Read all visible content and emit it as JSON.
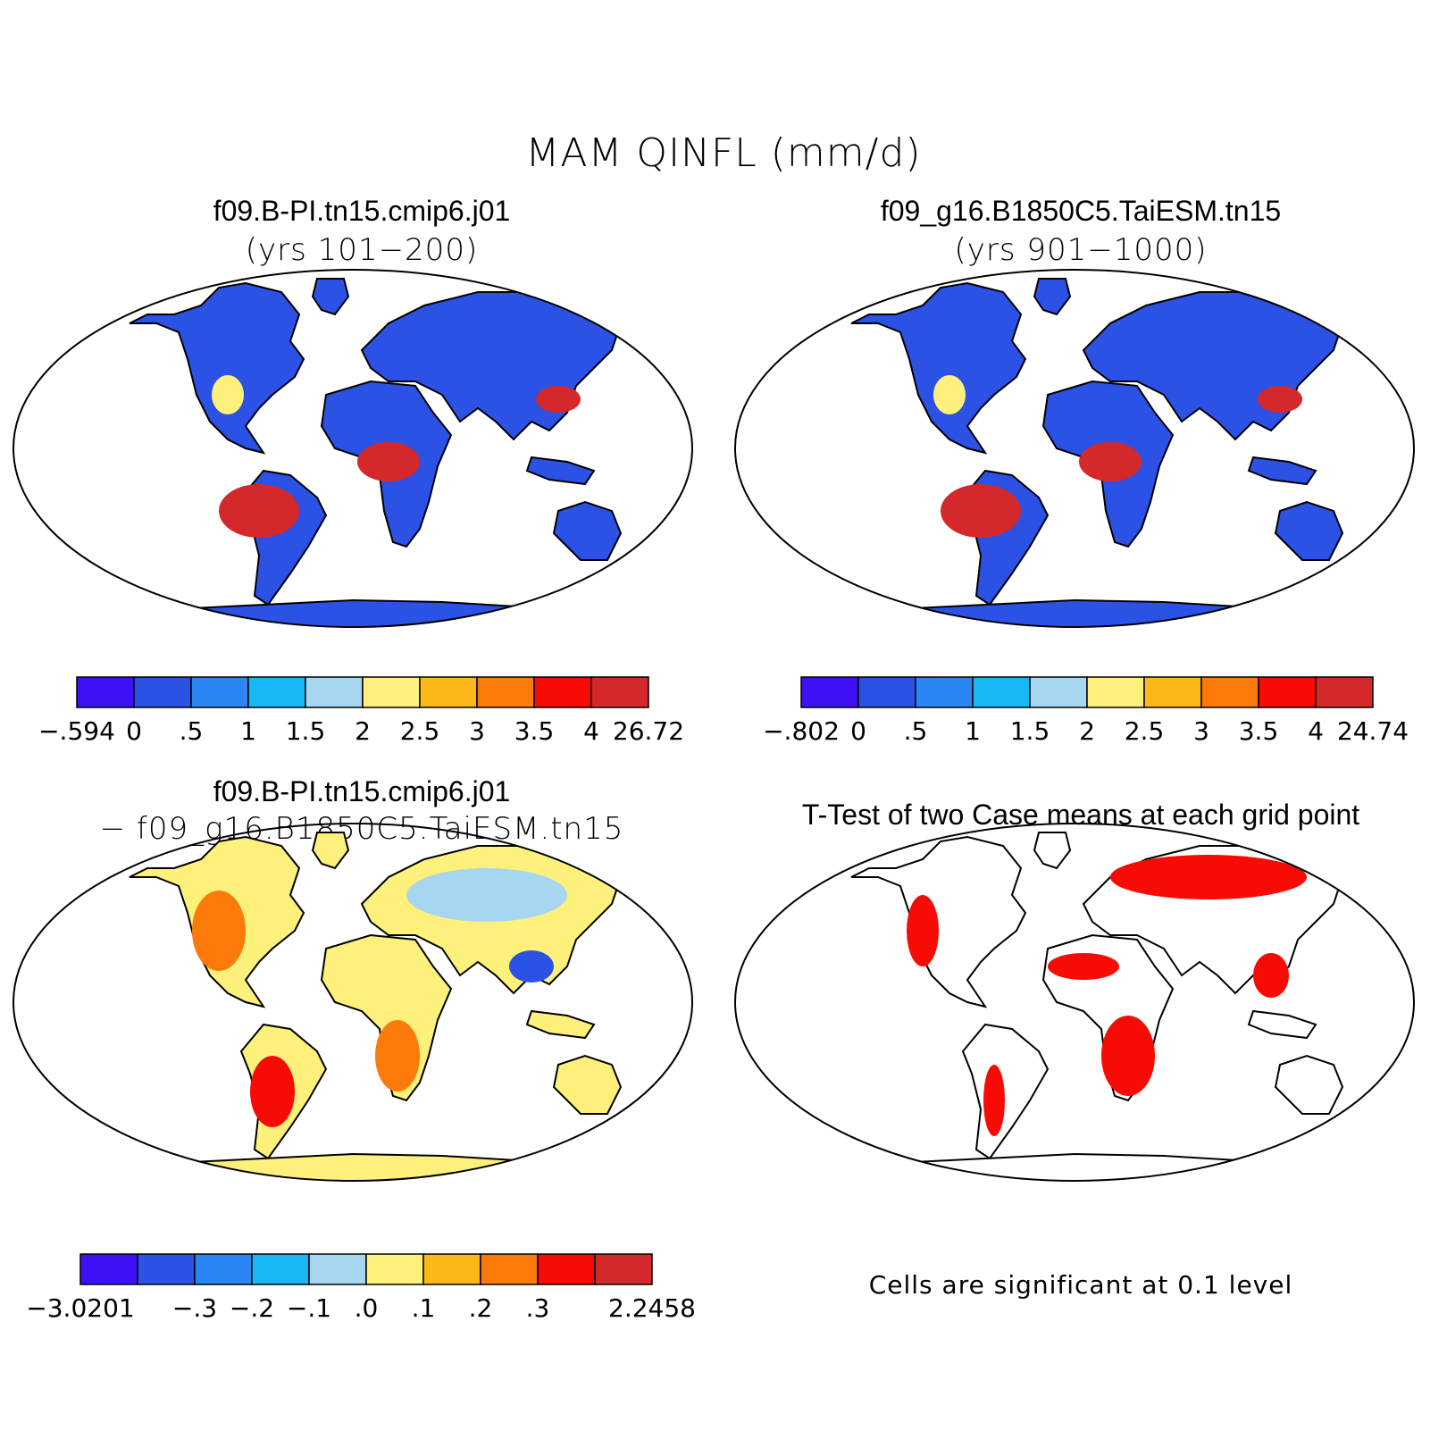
{
  "figure": {
    "title": "MAM QINFL (mm/d)"
  },
  "colors": [
    "#3e10f7",
    "#2b52e5",
    "#2a86f2",
    "#17b8f6",
    "#a6d6f0",
    "#fdf17c",
    "#fcb818",
    "#fc7a0a",
    "#f90b05",
    "#d5282a"
  ],
  "panels": {
    "top_left": {
      "line1": "f09.B-PI.tn15.cmip6.j01",
      "line2": "(yrs 101−200)"
    },
    "top_right": {
      "line1": "f09_g16.B1850C5.TaiESM.tn15",
      "line2": "(yrs 901−1000)"
    },
    "bottom_left": {
      "line1": "f09.B-PI.tn15.cmip6.j01",
      "line2": "− f09_g16.B1850C5.TaiESM.tn15"
    },
    "bottom_right": {
      "line1": "T-Test of two Case means at each grid point",
      "note": "Cells are significant at 0.1 level"
    }
  },
  "colorbars": {
    "top_left": [
      "−.594",
      "0",
      ".5",
      "1",
      "1.5",
      "2",
      "2.5",
      "3",
      "3.5",
      "4",
      "26.72"
    ],
    "top_right": [
      "−.802",
      "0",
      ".5",
      "1",
      "1.5",
      "2",
      "2.5",
      "3",
      "3.5",
      "4",
      "24.74"
    ],
    "bottom_left": [
      "−3.0201",
      "−.3",
      "−.2",
      "−.1",
      ".0",
      ".1",
      ".2",
      ".3",
      "2.2458"
    ]
  }
}
